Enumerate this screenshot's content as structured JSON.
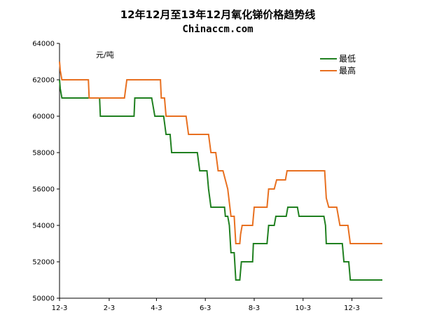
{
  "chart_data": {
    "type": "line",
    "title": "12年12月至13年12月氧化锑价格趋势线",
    "subtitle": "Chinaccm.com",
    "unit_label": "元/吨",
    "ylim": [
      50000,
      64000
    ],
    "y_ticks": [
      50000,
      52000,
      54000,
      56000,
      58000,
      60000,
      62000,
      64000
    ],
    "x_tick_labels": [
      "12-3",
      "2-3",
      "4-3",
      "6-3",
      "8-3",
      "10-3",
      "12-3"
    ],
    "legend_position": "top-right",
    "grid": false,
    "series": [
      {
        "name": "最低",
        "color": "#208020",
        "values": [
          [
            "2012-12-03",
            62000
          ],
          [
            "2012-12-04",
            61500
          ],
          [
            "2012-12-06",
            61000
          ],
          [
            "2013-01-22",
            61000
          ],
          [
            "2013-01-23",
            60000
          ],
          [
            "2013-03-06",
            60000
          ],
          [
            "2013-03-07",
            61000
          ],
          [
            "2013-03-28",
            61000
          ],
          [
            "2013-04-01",
            60000
          ],
          [
            "2013-04-12",
            60000
          ],
          [
            "2013-04-15",
            59000
          ],
          [
            "2013-04-20",
            59000
          ],
          [
            "2013-04-22",
            58000
          ],
          [
            "2013-05-24",
            58000
          ],
          [
            "2013-05-27",
            57000
          ],
          [
            "2013-06-05",
            57000
          ],
          [
            "2013-06-07",
            56000
          ],
          [
            "2013-06-10",
            55000
          ],
          [
            "2013-06-27",
            55000
          ],
          [
            "2013-06-28",
            54500
          ],
          [
            "2013-07-01",
            54500
          ],
          [
            "2013-07-03",
            54000
          ],
          [
            "2013-07-05",
            52500
          ],
          [
            "2013-07-09",
            52500
          ],
          [
            "2013-07-11",
            51000
          ],
          [
            "2013-07-16",
            51000
          ],
          [
            "2013-07-17",
            51500
          ],
          [
            "2013-07-18",
            52000
          ],
          [
            "2013-08-01",
            52000
          ],
          [
            "2013-08-02",
            53000
          ],
          [
            "2013-08-19",
            53000
          ],
          [
            "2013-08-21",
            54000
          ],
          [
            "2013-08-28",
            54000
          ],
          [
            "2013-08-30",
            54500
          ],
          [
            "2013-09-12",
            54500
          ],
          [
            "2013-09-14",
            55000
          ],
          [
            "2013-09-26",
            55000
          ],
          [
            "2013-09-28",
            54500
          ],
          [
            "2013-10-29",
            54500
          ],
          [
            "2013-10-31",
            54000
          ],
          [
            "2013-11-01",
            53000
          ],
          [
            "2013-11-21",
            53000
          ],
          [
            "2013-11-23",
            52000
          ],
          [
            "2013-11-29",
            52000
          ],
          [
            "2013-12-01",
            51000
          ],
          [
            "2014-01-10",
            51000
          ]
        ]
      },
      {
        "name": "最高",
        "color": "#e87020",
        "values": [
          [
            "2012-12-03",
            63000
          ],
          [
            "2012-12-04",
            62500
          ],
          [
            "2012-12-06",
            62000
          ],
          [
            "2013-01-08",
            62000
          ],
          [
            "2013-01-09",
            61000
          ],
          [
            "2013-02-22",
            61000
          ],
          [
            "2013-02-25",
            62000
          ],
          [
            "2013-04-08",
            62000
          ],
          [
            "2013-04-09",
            61000
          ],
          [
            "2013-04-13",
            61000
          ],
          [
            "2013-04-15",
            60000
          ],
          [
            "2013-05-10",
            60000
          ],
          [
            "2013-05-13",
            59000
          ],
          [
            "2013-06-07",
            59000
          ],
          [
            "2013-06-10",
            58000
          ],
          [
            "2013-06-16",
            58000
          ],
          [
            "2013-06-19",
            57000
          ],
          [
            "2013-06-25",
            57000
          ],
          [
            "2013-06-28",
            56500
          ],
          [
            "2013-07-01",
            56000
          ],
          [
            "2013-07-05",
            54500
          ],
          [
            "2013-07-09",
            54500
          ],
          [
            "2013-07-11",
            53000
          ],
          [
            "2013-07-16",
            53000
          ],
          [
            "2013-07-17",
            53500
          ],
          [
            "2013-07-19",
            54000
          ],
          [
            "2013-08-01",
            54000
          ],
          [
            "2013-08-03",
            55000
          ],
          [
            "2013-08-19",
            55000
          ],
          [
            "2013-08-21",
            56000
          ],
          [
            "2013-08-28",
            56000
          ],
          [
            "2013-08-31",
            56500
          ],
          [
            "2013-09-11",
            56500
          ],
          [
            "2013-09-13",
            57000
          ],
          [
            "2013-10-30",
            57000
          ],
          [
            "2013-11-01",
            55500
          ],
          [
            "2013-11-04",
            55000
          ],
          [
            "2013-11-14",
            55000
          ],
          [
            "2013-11-18",
            54000
          ],
          [
            "2013-11-28",
            54000
          ],
          [
            "2013-12-01",
            53000
          ],
          [
            "2014-01-10",
            53000
          ]
        ]
      }
    ]
  }
}
